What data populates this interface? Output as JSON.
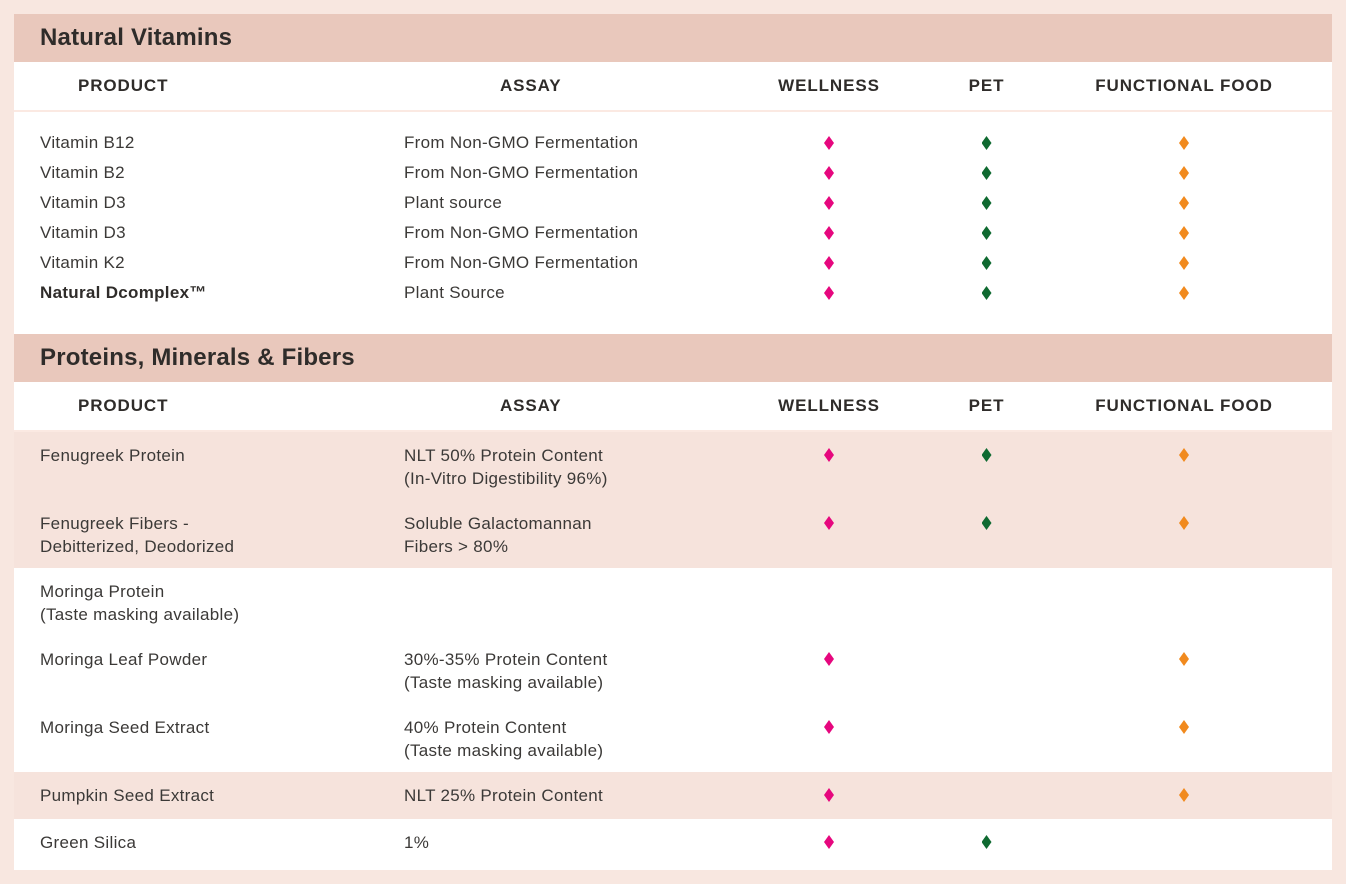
{
  "page": {
    "columns": [
      {
        "key": "product",
        "label": "PRODUCT"
      },
      {
        "key": "assay",
        "label": "ASSAY"
      },
      {
        "key": "wellness",
        "label": "WELLNESS"
      },
      {
        "key": "pet",
        "label": "PET"
      },
      {
        "key": "functional_food",
        "label": "FUNCTIONAL FOOD"
      }
    ],
    "marker_colors": {
      "wellness": "#e6077e",
      "pet": "#0f6a31",
      "functional_food": "#f18a1e"
    },
    "theme": {
      "section_bar_bg": "#e9c8bc",
      "highlight_row_bg": "#f6e3dc",
      "page_border_bg": "#f8e7e0",
      "text_dark": "#2f2c2a",
      "text_body": "#3b3937"
    },
    "sections": [
      {
        "title": "Natural Vitamins",
        "rows": [
          {
            "product": [
              "Vitamin B12"
            ],
            "assay": [
              "From Non-GMO Fermentation"
            ],
            "wellness": true,
            "pet": true,
            "functional_food": true
          },
          {
            "product": [
              "Vitamin B2"
            ],
            "assay": [
              "From Non-GMO Fermentation"
            ],
            "wellness": true,
            "pet": true,
            "functional_food": true
          },
          {
            "product": [
              "Vitamin D3"
            ],
            "assay": [
              "Plant source"
            ],
            "wellness": true,
            "pet": true,
            "functional_food": true
          },
          {
            "product": [
              "Vitamin D3"
            ],
            "assay": [
              "From Non-GMO Fermentation"
            ],
            "wellness": true,
            "pet": true,
            "functional_food": true
          },
          {
            "product": [
              "Vitamin K2"
            ],
            "assay": [
              "From Non-GMO Fermentation"
            ],
            "wellness": true,
            "pet": true,
            "functional_food": true
          },
          {
            "product": [
              "Natural Dcomplex™"
            ],
            "assay": [
              "Plant Source"
            ],
            "wellness": true,
            "pet": true,
            "functional_food": true,
            "bold_product": true
          }
        ]
      },
      {
        "title": "Proteins, Minerals & Fibers",
        "rows": [
          {
            "product": [
              "Fenugreek Protein"
            ],
            "assay": [
              "NLT 50% Protein Content",
              "(In-Vitro Digestibility 96%)"
            ],
            "wellness": true,
            "pet": true,
            "functional_food": true,
            "highlight": true
          },
          {
            "product": [
              "Fenugreek Fibers -",
              "Debitterized, Deodorized"
            ],
            "assay": [
              "Soluble Galactomannan",
              "Fibers > 80%"
            ],
            "wellness": true,
            "pet": true,
            "functional_food": true,
            "highlight": true
          },
          {
            "product": [
              "Moringa Protein",
              "(Taste masking available)"
            ],
            "assay": [],
            "wellness": false,
            "pet": false,
            "functional_food": false
          },
          {
            "product": [
              "Moringa Leaf Powder"
            ],
            "assay": [
              "30%-35% Protein Content",
              "(Taste masking available)"
            ],
            "wellness": true,
            "pet": false,
            "functional_food": true
          },
          {
            "product": [
              "Moringa Seed Extract"
            ],
            "assay": [
              "40% Protein Content",
              "(Taste masking available)"
            ],
            "wellness": true,
            "pet": false,
            "functional_food": true
          },
          {
            "product": [
              "Pumpkin Seed Extract"
            ],
            "assay": [
              "NLT 25% Protein Content"
            ],
            "wellness": true,
            "pet": false,
            "functional_food": true,
            "highlight": true
          },
          {
            "product": [
              "Green Silica"
            ],
            "assay": [
              "1%"
            ],
            "wellness": true,
            "pet": true,
            "functional_food": false
          }
        ]
      }
    ]
  }
}
